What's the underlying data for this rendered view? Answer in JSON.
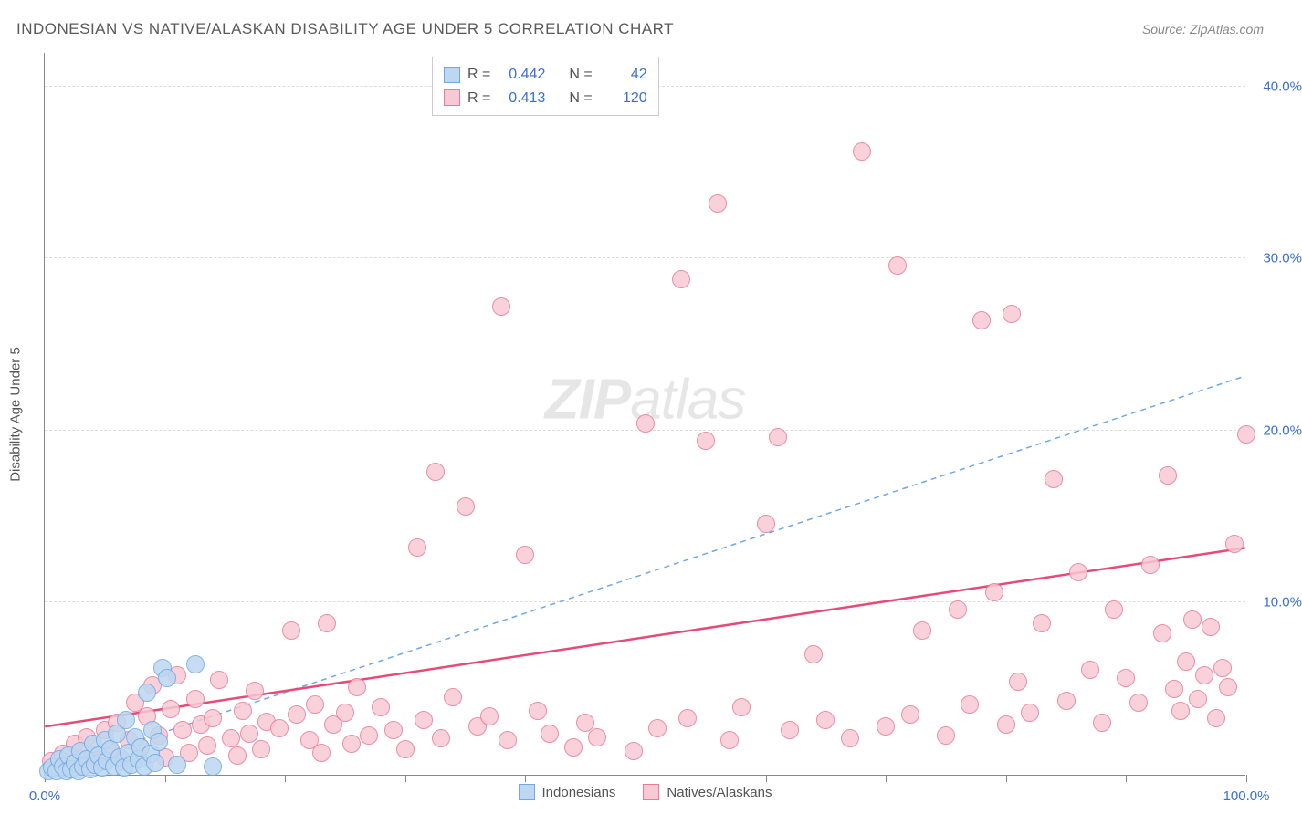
{
  "title": "INDONESIAN VS NATIVE/ALASKAN DISABILITY AGE UNDER 5 CORRELATION CHART",
  "source": "Source: ZipAtlas.com",
  "watermark": {
    "bold": "ZIP",
    "rest": "atlas"
  },
  "chart": {
    "type": "scatter",
    "background_color": "#ffffff",
    "grid_color": "#dcdcdc",
    "axis_color": "#888888",
    "label_color": "#3b6fd6",
    "y_axis_title": "Disability Age Under 5",
    "xlim": [
      0,
      100
    ],
    "ylim": [
      0,
      42
    ],
    "x_ticks": [
      0,
      10,
      20,
      30,
      40,
      50,
      60,
      70,
      80,
      90,
      100
    ],
    "x_tick_labels": {
      "0": "0.0%",
      "100": "100.0%"
    },
    "y_ticks": [
      10,
      20,
      30,
      40
    ],
    "y_tick_labels": {
      "10": "10.0%",
      "20": "20.0%",
      "30": "30.0%",
      "40": "40.0%"
    },
    "point_radius": 10,
    "series": [
      {
        "name": "Indonesians",
        "fill": "#bdd7f0",
        "stroke": "#6fa8e6",
        "trend": {
          "style": "dashed",
          "color": "#6fa8e6",
          "width": 1.5,
          "x1": 0,
          "y1": 0.2,
          "x2": 100,
          "y2": 23.2
        },
        "stats": {
          "R": "0.442",
          "N": "42"
        },
        "points": [
          [
            0.3,
            0.2
          ],
          [
            0.6,
            0.4
          ],
          [
            1.0,
            0.2
          ],
          [
            1.2,
            0.9
          ],
          [
            1.5,
            0.5
          ],
          [
            1.8,
            0.2
          ],
          [
            2.0,
            1.1
          ],
          [
            2.2,
            0.3
          ],
          [
            2.5,
            0.7
          ],
          [
            2.8,
            0.2
          ],
          [
            3.0,
            1.4
          ],
          [
            3.2,
            0.5
          ],
          [
            3.5,
            0.9
          ],
          [
            3.8,
            0.3
          ],
          [
            4.0,
            1.8
          ],
          [
            4.2,
            0.6
          ],
          [
            4.5,
            1.1
          ],
          [
            4.8,
            0.4
          ],
          [
            5.0,
            2.0
          ],
          [
            5.2,
            0.8
          ],
          [
            5.5,
            1.5
          ],
          [
            5.8,
            0.5
          ],
          [
            6.0,
            2.4
          ],
          [
            6.2,
            1.0
          ],
          [
            6.6,
            0.4
          ],
          [
            6.8,
            3.2
          ],
          [
            7.0,
            1.3
          ],
          [
            7.2,
            0.6
          ],
          [
            7.5,
            2.2
          ],
          [
            7.8,
            0.9
          ],
          [
            8.0,
            1.6
          ],
          [
            8.3,
            0.5
          ],
          [
            8.5,
            4.8
          ],
          [
            8.8,
            1.2
          ],
          [
            9.0,
            2.6
          ],
          [
            9.2,
            0.7
          ],
          [
            9.5,
            1.9
          ],
          [
            9.8,
            6.2
          ],
          [
            10.2,
            5.6
          ],
          [
            11.0,
            0.6
          ],
          [
            12.5,
            6.4
          ],
          [
            14.0,
            0.5
          ]
        ]
      },
      {
        "name": "Natives/Alaskans",
        "fill": "#f7c9d4",
        "stroke": "#e87b99",
        "trend": {
          "style": "solid",
          "color": "#e64b78",
          "width": 2.5,
          "x1": 0,
          "y1": 2.8,
          "x2": 100,
          "y2": 13.2
        },
        "stats": {
          "R": "0.413",
          "N": "120"
        },
        "points": [
          [
            0.5,
            0.8
          ],
          [
            1.0,
            0.4
          ],
          [
            1.5,
            1.2
          ],
          [
            2.0,
            0.6
          ],
          [
            2.5,
            1.8
          ],
          [
            3.0,
            0.9
          ],
          [
            3.5,
            2.2
          ],
          [
            4.0,
            1.1
          ],
          [
            4.5,
            0.7
          ],
          [
            5.0,
            2.6
          ],
          [
            5.5,
            1.4
          ],
          [
            6.0,
            3.0
          ],
          [
            6.5,
            0.8
          ],
          [
            7.0,
            2.0
          ],
          [
            7.5,
            4.2
          ],
          [
            8.0,
            1.6
          ],
          [
            8.5,
            3.4
          ],
          [
            9.0,
            5.2
          ],
          [
            9.5,
            2.3
          ],
          [
            10.0,
            1.0
          ],
          [
            10.5,
            3.8
          ],
          [
            11.0,
            5.8
          ],
          [
            11.5,
            2.6
          ],
          [
            12.0,
            1.3
          ],
          [
            12.5,
            4.4
          ],
          [
            13.0,
            2.9
          ],
          [
            13.5,
            1.7
          ],
          [
            14.0,
            3.3
          ],
          [
            14.5,
            5.5
          ],
          [
            15.5,
            2.1
          ],
          [
            16.0,
            1.1
          ],
          [
            16.5,
            3.7
          ],
          [
            17.0,
            2.4
          ],
          [
            17.5,
            4.9
          ],
          [
            18.0,
            1.5
          ],
          [
            18.5,
            3.1
          ],
          [
            19.5,
            2.7
          ],
          [
            20.5,
            8.4
          ],
          [
            21.0,
            3.5
          ],
          [
            22.0,
            2.0
          ],
          [
            22.5,
            4.1
          ],
          [
            23.0,
            1.3
          ],
          [
            23.5,
            8.8
          ],
          [
            24.0,
            2.9
          ],
          [
            25.0,
            3.6
          ],
          [
            25.5,
            1.8
          ],
          [
            26.0,
            5.1
          ],
          [
            27.0,
            2.3
          ],
          [
            28.0,
            3.9
          ],
          [
            29.0,
            2.6
          ],
          [
            30.0,
            1.5
          ],
          [
            31.0,
            13.2
          ],
          [
            31.5,
            3.2
          ],
          [
            32.5,
            17.6
          ],
          [
            33.0,
            2.1
          ],
          [
            34.0,
            4.5
          ],
          [
            35.0,
            15.6
          ],
          [
            36.0,
            2.8
          ],
          [
            37.0,
            3.4
          ],
          [
            38.0,
            27.2
          ],
          [
            38.5,
            2.0
          ],
          [
            40.0,
            12.8
          ],
          [
            41.0,
            3.7
          ],
          [
            42.0,
            2.4
          ],
          [
            44.0,
            1.6
          ],
          [
            45.0,
            3.0
          ],
          [
            46.0,
            2.2
          ],
          [
            49.0,
            1.4
          ],
          [
            50.0,
            20.4
          ],
          [
            51.0,
            2.7
          ],
          [
            53.0,
            28.8
          ],
          [
            53.5,
            3.3
          ],
          [
            55.0,
            19.4
          ],
          [
            56.0,
            33.2
          ],
          [
            57.0,
            2.0
          ],
          [
            58.0,
            3.9
          ],
          [
            60.0,
            14.6
          ],
          [
            61.0,
            19.6
          ],
          [
            62.0,
            2.6
          ],
          [
            64.0,
            7.0
          ],
          [
            65.0,
            3.2
          ],
          [
            67.0,
            2.1
          ],
          [
            68.0,
            36.2
          ],
          [
            70.0,
            2.8
          ],
          [
            71.0,
            29.6
          ],
          [
            72.0,
            3.5
          ],
          [
            73.0,
            8.4
          ],
          [
            75.0,
            2.3
          ],
          [
            76.0,
            9.6
          ],
          [
            77.0,
            4.1
          ],
          [
            78.0,
            26.4
          ],
          [
            79.0,
            10.6
          ],
          [
            80.0,
            2.9
          ],
          [
            80.5,
            26.8
          ],
          [
            81.0,
            5.4
          ],
          [
            82.0,
            3.6
          ],
          [
            83.0,
            8.8
          ],
          [
            84.0,
            17.2
          ],
          [
            85.0,
            4.3
          ],
          [
            86.0,
            11.8
          ],
          [
            87.0,
            6.1
          ],
          [
            88.0,
            3.0
          ],
          [
            89.0,
            9.6
          ],
          [
            90.0,
            5.6
          ],
          [
            91.0,
            4.2
          ],
          [
            92.0,
            12.2
          ],
          [
            93.0,
            8.2
          ],
          [
            93.5,
            17.4
          ],
          [
            94.0,
            5.0
          ],
          [
            94.5,
            3.7
          ],
          [
            95.0,
            6.6
          ],
          [
            95.5,
            9.0
          ],
          [
            96.0,
            4.4
          ],
          [
            96.5,
            5.8
          ],
          [
            97.0,
            8.6
          ],
          [
            97.5,
            3.3
          ],
          [
            98.0,
            6.2
          ],
          [
            98.5,
            5.1
          ],
          [
            99.0,
            13.4
          ],
          [
            100.0,
            19.8
          ]
        ]
      }
    ]
  },
  "stat_box": {
    "R_label": "R =",
    "N_label": "N ="
  },
  "legend": {
    "series1": "Indonesians",
    "series2": "Natives/Alaskans"
  }
}
